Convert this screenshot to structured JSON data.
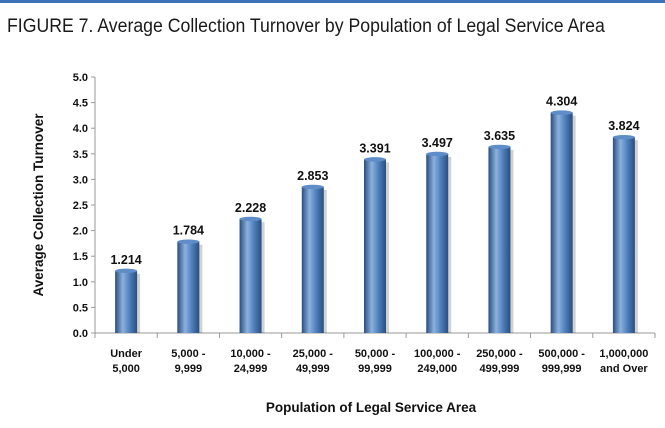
{
  "header": {
    "figure_title": "FIGURE 7. Average Collection Turnover by Population of Legal Service Area"
  },
  "colors": {
    "rule": "#3d73b8",
    "bar_light": "#8cb1de",
    "bar_mid": "#4f81bd",
    "bar_dark": "#2a4e7f",
    "bar_top": "#5e8dc7"
  },
  "chart_data": {
    "type": "bar",
    "title": "",
    "xlabel": "Population of Legal Service Area",
    "ylabel": "Average Collection Turnover",
    "ylim": [
      0,
      5.0
    ],
    "yticks": [
      "0.0",
      "0.5",
      "1.0",
      "1.5",
      "2.0",
      "2.5",
      "3.0",
      "3.5",
      "4.0",
      "4.5",
      "5.0"
    ],
    "grid": false,
    "categories": [
      [
        "Under",
        "5,000"
      ],
      [
        "5,000 -",
        "9,999"
      ],
      [
        "10,000 -",
        "24,999"
      ],
      [
        "25,000 -",
        "49,999"
      ],
      [
        "50,000 -",
        "99,999"
      ],
      [
        "100,000 -",
        "249,000"
      ],
      [
        "250,000 -",
        "499,999"
      ],
      [
        "500,000 -",
        "999,999"
      ],
      [
        "1,000,000",
        "and Over"
      ]
    ],
    "values": [
      1.214,
      1.784,
      2.228,
      2.853,
      3.391,
      3.497,
      3.635,
      4.304,
      3.824
    ],
    "data_labels": [
      "1.214",
      "1.784",
      "2.228",
      "2.853",
      "3.391",
      "3.497",
      "3.635",
      "4.304",
      "3.824"
    ]
  }
}
